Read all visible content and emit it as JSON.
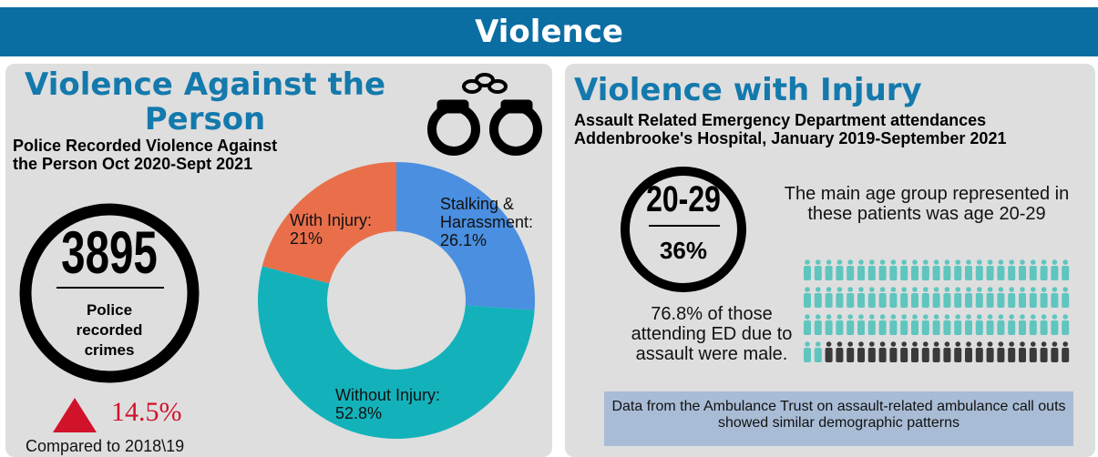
{
  "header": {
    "title": "Violence"
  },
  "left_panel": {
    "title": "Violence Against the Person",
    "subtitle": "Police Recorded Violence Against the Person Oct 2020-Sept 2021",
    "stat": {
      "value": "3895",
      "label": "Police recorded crimes"
    },
    "change": {
      "value": "14.5%",
      "label": "Compared to 2018\\19"
    }
  },
  "chart_data": {
    "type": "donut",
    "categories": [
      "Stalking & Harassment:",
      "Without Injury:",
      "With Injury:"
    ],
    "values": [
      26.1,
      52.8,
      21
    ],
    "value_labels": [
      "26.1%",
      "52.8%",
      "21%"
    ],
    "colors": [
      "#4a8fe0",
      "#13b2bb",
      "#e96f4b"
    ]
  },
  "right_panel": {
    "title": "Violence with Injury",
    "subtitle_lines": [
      "Assault Related Emergency Department attendances",
      "Addenbrooke's Hospital, January 2019-September 2021"
    ],
    "age_stat": {
      "group": "20-29",
      "share": "36%"
    },
    "age_text": "The main age group represented in these patients was age 20-29",
    "male_text": "76.8% of those attending ED due to assault were male.",
    "note": "Data from the Ambulance Trust on assault-related ambulance call outs showed similar demographic patterns"
  }
}
